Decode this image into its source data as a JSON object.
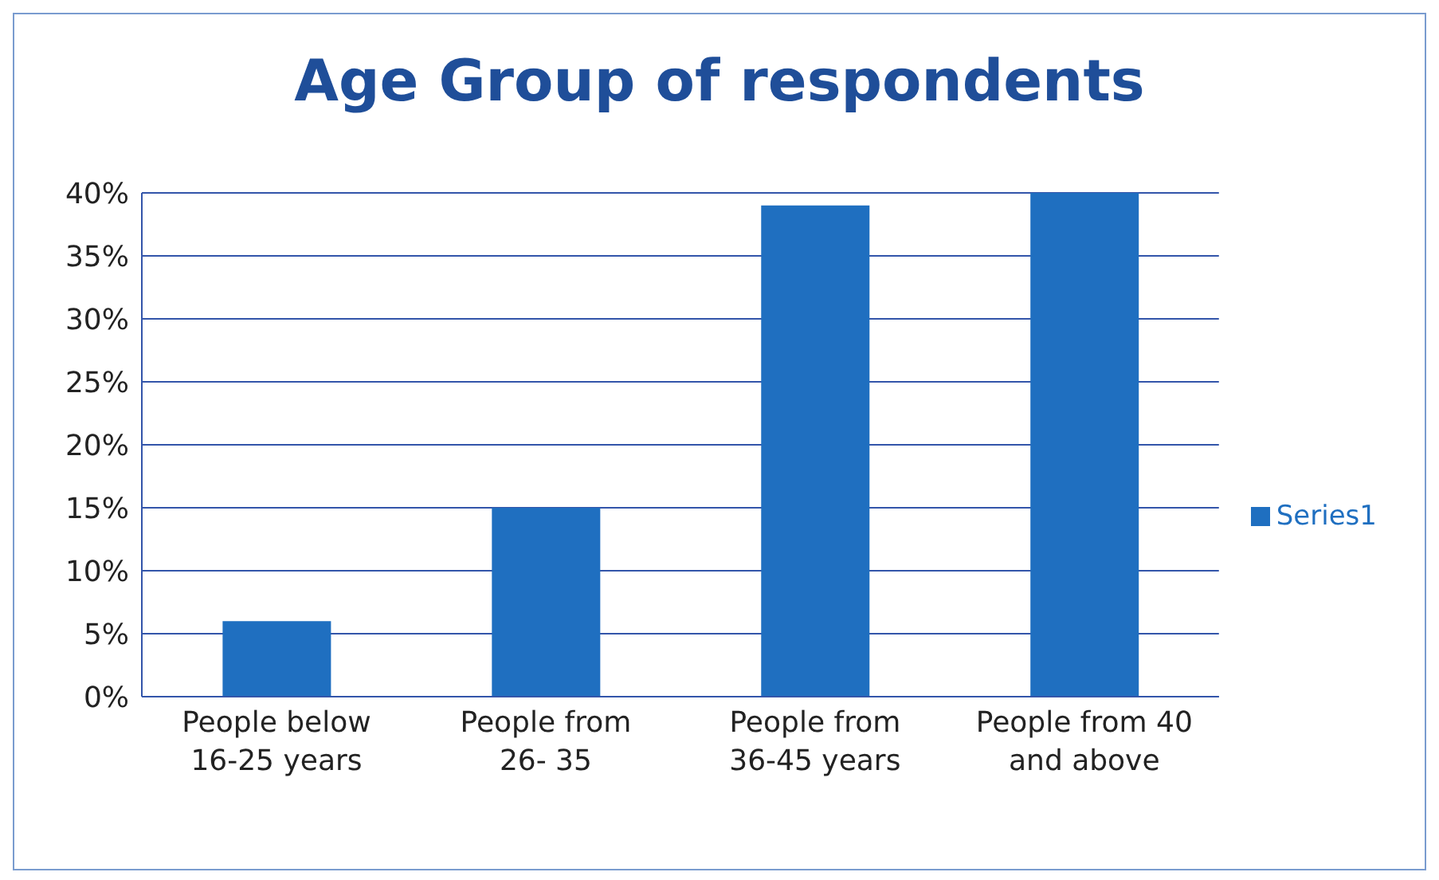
{
  "chart_data": {
    "type": "bar",
    "title": "Age Group of respondents",
    "categories": [
      "People below 16-25 years",
      "People from 26- 35",
      "People from 36-45 years",
      "People from 40 and above"
    ],
    "series": [
      {
        "name": "Series1",
        "color": "#1f6fc0",
        "values": [
          6,
          15,
          39,
          40
        ]
      }
    ],
    "ylim": [
      0,
      40
    ],
    "yticks": [
      {
        "value": 0,
        "label": "0%"
      },
      {
        "value": 5,
        "label": "5%"
      },
      {
        "value": 10,
        "label": "10%"
      },
      {
        "value": 15,
        "label": "15%"
      },
      {
        "value": 20,
        "label": "20%"
      },
      {
        "value": 25,
        "label": "25%"
      },
      {
        "value": 30,
        "label": "30%"
      },
      {
        "value": 35,
        "label": "35%"
      },
      {
        "value": 40,
        "label": "40%"
      }
    ],
    "grid": "y",
    "legend": "right"
  }
}
